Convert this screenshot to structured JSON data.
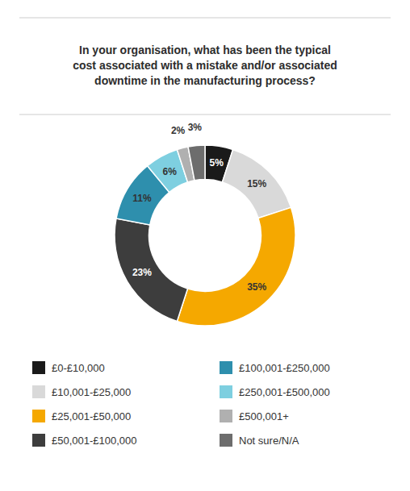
{
  "chart_data": {
    "type": "donut",
    "title": "In your organisation, what has been the typical\ncost associated with a mistake and/or associated\ndowntime in the manufacturing process?",
    "categories": [
      "£0-£10,000",
      "£10,001-£25,000",
      "£25,001-£50,000",
      "£50,001-£100,000",
      "£100,001-£250,000",
      "£250,001-£500,000",
      "£500,001+",
      "Not sure/N/A"
    ],
    "values": [
      5,
      15,
      35,
      23,
      11,
      6,
      2,
      3
    ],
    "value_labels": [
      "5%",
      "15%",
      "35%",
      "23%",
      "11%",
      "6%",
      "2%",
      "3%"
    ],
    "colors": [
      "#1a1a1a",
      "#d9d9d9",
      "#f5a800",
      "#3d3d3d",
      "#2e8fad",
      "#7ecfe0",
      "#b0b0b0",
      "#6d6d6d"
    ],
    "data_labels": true,
    "legend": "bottom"
  }
}
